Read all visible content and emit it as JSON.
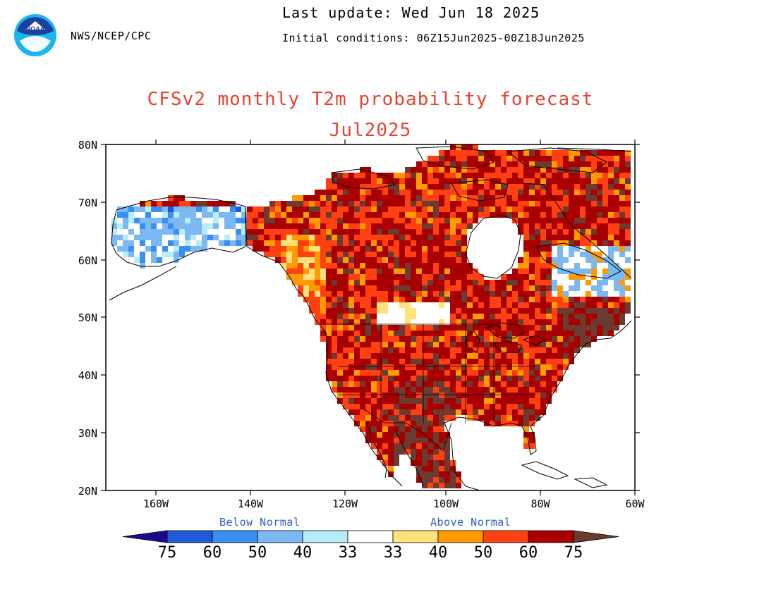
{
  "header": {
    "agency": "NWS/NCEP/CPC",
    "last_update": "Last update: Wed Jun 18 2025",
    "initial_conditions": "Initial conditions: 06Z15Jun2025-00Z18Jun2025",
    "logo_text": "NOAA"
  },
  "title": {
    "line1": "CFSv2 monthly T2m probability forecast",
    "line2": "Jul2025"
  },
  "axes": {
    "lat_labels": [
      "80N",
      "70N",
      "60N",
      "50N",
      "40N",
      "30N",
      "20N"
    ],
    "lon_labels": [
      "160W",
      "140W",
      "120W",
      "100W",
      "80W",
      "60W"
    ]
  },
  "legend": {
    "below_label": "Below Normal",
    "above_label": "Above Normal",
    "below_numbers": [
      "75",
      "60",
      "50",
      "40",
      "33"
    ],
    "above_numbers": [
      "33",
      "40",
      "50",
      "60",
      "75"
    ],
    "colors": [
      "#1a0a8f",
      "#1f5ad6",
      "#3a8ff2",
      "#7cb9f2",
      "#b8ecf8",
      "#ffffff",
      "#ffe27a",
      "#ff9a00",
      "#ff4012",
      "#a80000",
      "#6a3b30"
    ]
  },
  "colors": {
    "title": "#e8432e",
    "legend_caption": "#2e5fbf"
  }
}
